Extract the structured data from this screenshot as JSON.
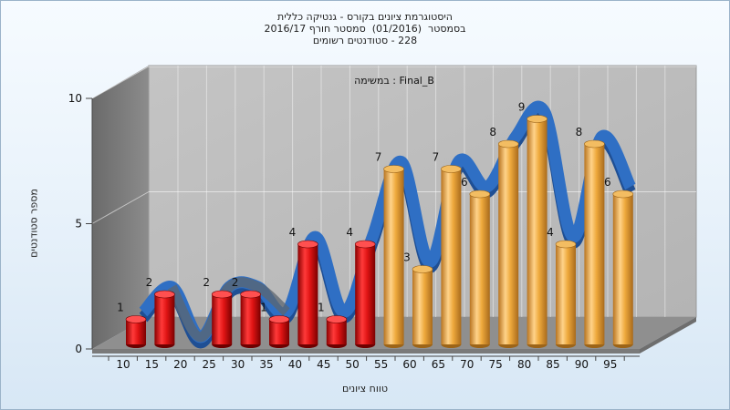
{
  "chart_data": {
    "type": "bar",
    "title_lines": [
      "היסטוגרמת ציונים בקורס - גנטיקה כללית",
      "בסמסטר  (01/2016)  סמסטר חורף 2016/17",
      "228 - סטודנטים רשומים"
    ],
    "subtitle": "Final_B : במשימה",
    "xlabel": "טווח ציונים",
    "ylabel": "מספר סטודנטים",
    "ylim": [
      0,
      10
    ],
    "yticks": [
      0,
      5,
      10
    ],
    "categories": [
      "10",
      "15",
      "20",
      "25",
      "30",
      "35",
      "40",
      "45",
      "50",
      "55",
      "60",
      "65",
      "70",
      "75",
      "80",
      "85",
      "90",
      "95"
    ],
    "values": [
      1,
      2,
      0,
      2,
      2,
      1,
      4,
      1,
      4,
      7,
      3,
      7,
      6,
      8,
      9,
      4,
      8,
      6
    ],
    "series": [
      {
        "name": "",
        "values": [
          1,
          2,
          0,
          2,
          2,
          1,
          4,
          1,
          4,
          7,
          3,
          7,
          6,
          8,
          9,
          4,
          8,
          6
        ]
      }
    ],
    "bar_colors": {
      "fail": "#e01a1a",
      "pass": "#eea93c",
      "trend": "#2f6fc4",
      "trend_low": "#5c6670"
    },
    "pass_threshold": 55,
    "grid": true
  }
}
